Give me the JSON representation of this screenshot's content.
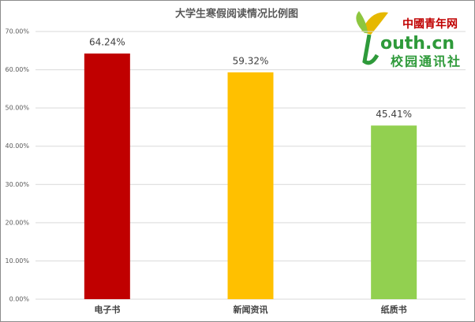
{
  "chart_data": {
    "type": "bar",
    "title": "大学生寒假阅读情况比例图",
    "categories": [
      "电子书",
      "新闻资讯",
      "纸质书"
    ],
    "values": [
      64.24,
      59.32,
      45.41
    ],
    "value_labels": [
      "64.24%",
      "59.32%",
      "45.41%"
    ],
    "colors": [
      "#c00000",
      "#ffc000",
      "#92d050"
    ],
    "ylim": [
      0,
      70
    ],
    "yticks": [
      {
        "value": 0,
        "label": "0.00%"
      },
      {
        "value": 10,
        "label": "10.00%"
      },
      {
        "value": 20,
        "label": "20.00%"
      },
      {
        "value": 30,
        "label": "30.00%"
      },
      {
        "value": 40,
        "label": "40.00%"
      },
      {
        "value": 50,
        "label": "50.00%"
      },
      {
        "value": 60,
        "label": "60.00%"
      },
      {
        "value": 70,
        "label": "70.00%"
      }
    ],
    "grid": true
  },
  "logo": {
    "brand": "中國青年网",
    "domain": "outh.cn",
    "subtitle": "校园通讯社"
  }
}
